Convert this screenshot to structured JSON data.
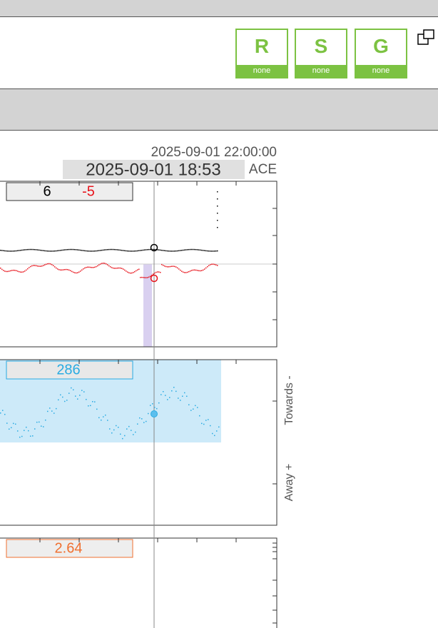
{
  "scales": [
    {
      "label": "R",
      "status": "none"
    },
    {
      "label": "S",
      "status": "none"
    },
    {
      "label": "G",
      "status": "none"
    }
  ],
  "timestamps": {
    "latest": "2025-09-01 22:00:00",
    "cursor": "2025-09-01 18:53",
    "source": "ACE"
  },
  "panels": [
    {
      "readouts": [
        "6",
        "-5"
      ]
    },
    {
      "readouts": [
        "286"
      ],
      "labels": [
        "Towards -",
        "Away +"
      ]
    },
    {
      "readouts": [
        "2.64"
      ]
    }
  ]
}
